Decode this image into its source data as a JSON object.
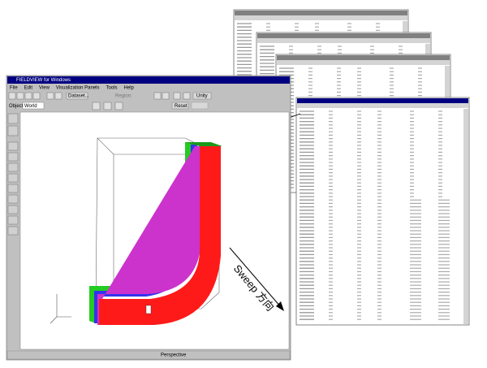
{
  "window": {
    "title": "FIELDVIEW for Windows",
    "menu": [
      "File",
      "Edit",
      "View",
      "Visualization Panels",
      "Tools",
      "Help"
    ],
    "toolbar": {
      "dataset": "Dataset...",
      "region": "Region:",
      "unity": "Unity"
    },
    "object_label": "Object:",
    "object_value": "World",
    "reset": "Reset",
    "status": "Perspective"
  },
  "annotation": "Sweep 方向"
}
